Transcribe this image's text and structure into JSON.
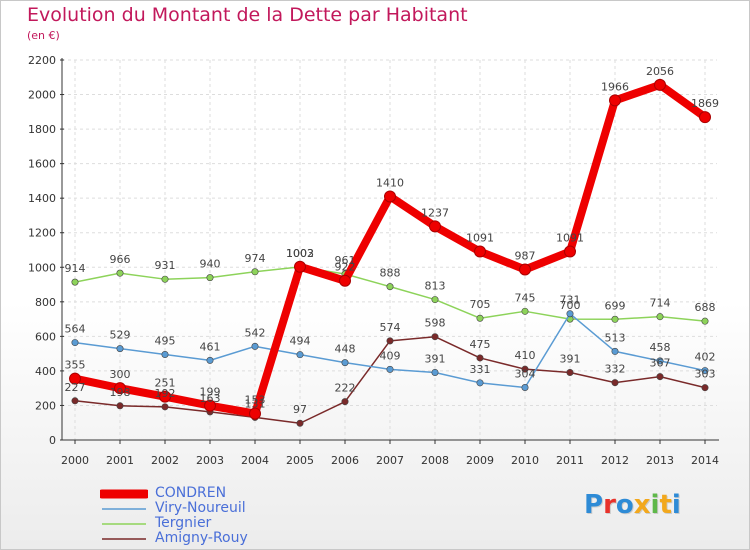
{
  "title": "Evolution du Montant de la Dette par Habitant",
  "subtitle": "(en €)",
  "logo": "Proxiti",
  "chart_data": {
    "type": "line",
    "title": "Evolution du Montant de la Dette par Habitant",
    "ylabel": "(en €)",
    "x": [
      "2000",
      "2001",
      "2002",
      "2003",
      "2004",
      "2005",
      "2006",
      "2007",
      "2008",
      "2009",
      "2010",
      "2011",
      "2012",
      "2013",
      "2014"
    ],
    "ylim": [
      0,
      2200
    ],
    "yticks": [
      "0",
      "200",
      "400",
      "600",
      "800",
      "1000",
      "1200",
      "1400",
      "1600",
      "1800",
      "2000",
      "2200"
    ],
    "grid": true,
    "legend_position": "bottom-left",
    "series": [
      {
        "name": "CONDREN",
        "color": "#ee0000",
        "values": [
          355,
          300,
          251,
          199,
          153,
          1003,
          922,
          1410,
          1237,
          1091,
          987,
          1091,
          1966,
          2056,
          1869
        ],
        "labels": [
          "355",
          "300",
          "251",
          "199",
          "153",
          "1003",
          "922",
          "1410",
          "1237",
          "1091",
          "987",
          "1091",
          "1966",
          "2056",
          "1869"
        ]
      },
      {
        "name": "Viry-Noureuil",
        "color": "#5a9bd3",
        "values": [
          564,
          529,
          495,
          461,
          542,
          494,
          448,
          409,
          391,
          331,
          304,
          731,
          513,
          458,
          402
        ],
        "labels": [
          "564",
          "529",
          "495",
          "461",
          "542",
          "494",
          "448",
          "409",
          "391",
          "331",
          "304",
          "731",
          "513",
          "458",
          "402"
        ]
      },
      {
        "name": "Tergnier",
        "color": "#8dd35a",
        "values": [
          914,
          966,
          931,
          940,
          974,
          1002,
          961,
          888,
          813,
          705,
          745,
          700,
          699,
          714,
          688
        ],
        "labels": [
          "914",
          "966",
          "931",
          "940",
          "974",
          "1002",
          "961",
          "888",
          "813",
          "705",
          "745",
          "700",
          "699",
          "714",
          "688"
        ]
      },
      {
        "name": "Amigny-Rouy",
        "color": "#7a2a2a",
        "values": [
          227,
          198,
          192,
          163,
          131,
          97,
          222,
          574,
          598,
          475,
          410,
          391,
          332,
          367,
          303
        ],
        "labels": [
          "227",
          "198",
          "192",
          "163",
          "131",
          "97",
          "222",
          "574",
          "598",
          "475",
          "410",
          "391",
          "332",
          "367",
          "303"
        ]
      }
    ]
  }
}
